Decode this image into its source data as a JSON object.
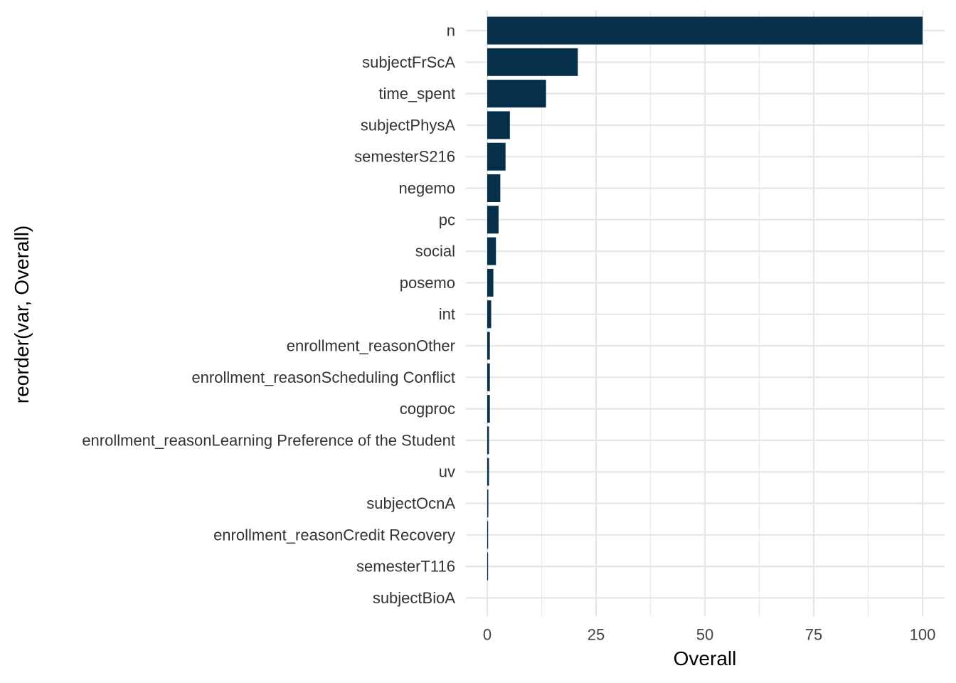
{
  "chart_data": {
    "type": "bar",
    "orientation": "horizontal",
    "xlabel": "Overall",
    "ylabel": "reorder(var, Overall)",
    "xlim": [
      0,
      100
    ],
    "x_ticks": [
      0,
      25,
      50,
      75,
      100
    ],
    "x_tick_labels": [
      "0",
      "25",
      "50",
      "75",
      "100"
    ],
    "grid": true,
    "bar_color": "#062F4A",
    "categories": [
      "n",
      "subjectFrScA",
      "time_spent",
      "subjectPhysA",
      "semesterS216",
      "negemo",
      "pc",
      "social",
      "posemo",
      "int",
      "enrollment_reasonOther",
      "enrollment_reasonScheduling Conflict",
      "cogproc",
      "enrollment_reasonLearning Preference of the Student",
      "uv",
      "subjectOcnA",
      "enrollment_reasonCredit Recovery",
      "semesterT116",
      "subjectBioA"
    ],
    "values": [
      100,
      20.8,
      13.5,
      5.2,
      4.2,
      3.0,
      2.6,
      2.0,
      1.4,
      0.9,
      0.6,
      0.6,
      0.6,
      0.4,
      0.4,
      0.25,
      0.2,
      0.15,
      0
    ]
  }
}
